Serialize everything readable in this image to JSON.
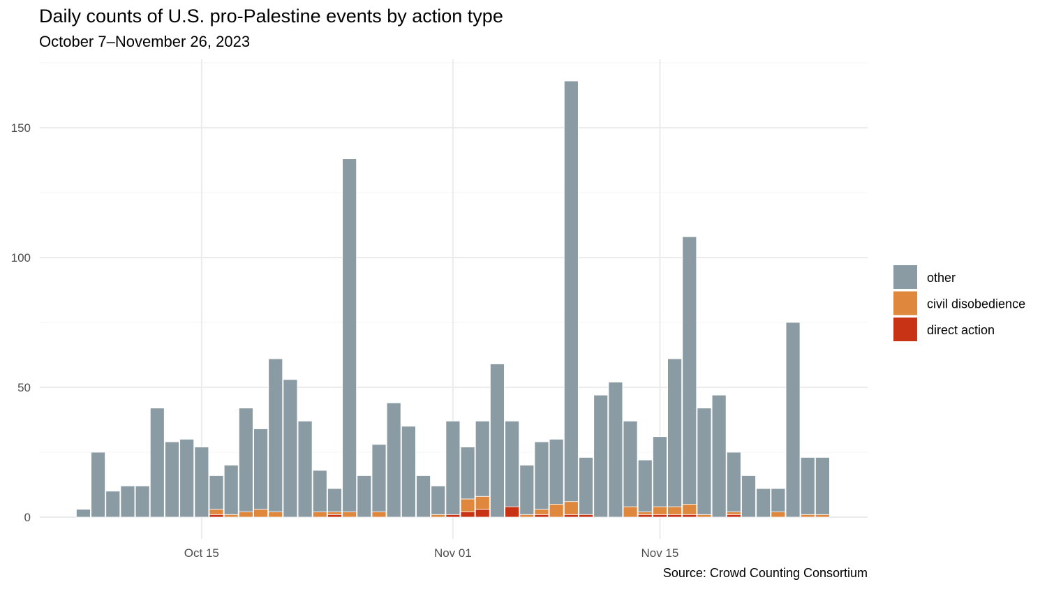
{
  "chart_data": {
    "type": "bar",
    "stacked": true,
    "title": "Daily counts of U.S. pro-Palestine events by action type",
    "subtitle": "October 7–November 26, 2023",
    "caption": "Source: Crowd Counting Consortium",
    "xlabel": "",
    "ylabel": "",
    "ylim": [
      0,
      175
    ],
    "grid": true,
    "legend_position": "right",
    "x_ticks": [
      {
        "date": "2023-10-15",
        "label": "Oct 15"
      },
      {
        "date": "2023-11-01",
        "label": "Nov 01"
      },
      {
        "date": "2023-11-15",
        "label": "Nov 15"
      }
    ],
    "y_ticks": [
      0,
      50,
      100,
      150
    ],
    "x_start": "2023-10-07",
    "x_end": "2023-11-26",
    "series": [
      {
        "name": "other",
        "color": "#8A9BA3",
        "values": [
          3,
          25,
          10,
          12,
          12,
          42,
          29,
          30,
          27,
          13,
          19,
          40,
          31,
          59,
          53,
          37,
          16,
          9,
          136,
          16,
          26,
          44,
          35,
          16,
          11,
          36,
          20,
          29,
          59,
          33,
          19,
          26,
          25,
          162,
          22,
          47,
          52,
          33,
          20,
          27,
          57,
          103,
          41,
          47,
          23,
          16,
          11,
          9,
          75,
          22,
          22
        ]
      },
      {
        "name": "civil disobedience",
        "color": "#DE873D",
        "values": [
          0,
          0,
          0,
          0,
          0,
          0,
          0,
          0,
          0,
          2,
          1,
          2,
          3,
          2,
          0,
          0,
          2,
          1,
          2,
          0,
          2,
          0,
          0,
          0,
          1,
          0,
          5,
          5,
          0,
          0,
          1,
          2,
          5,
          5,
          0,
          0,
          0,
          4,
          1,
          3,
          3,
          4,
          1,
          0,
          1,
          0,
          0,
          2,
          0,
          1,
          1
        ]
      },
      {
        "name": "direct action",
        "color": "#C93315",
        "values": [
          0,
          0,
          0,
          0,
          0,
          0,
          0,
          0,
          0,
          1,
          0,
          0,
          0,
          0,
          0,
          0,
          0,
          1,
          0,
          0,
          0,
          0,
          0,
          0,
          0,
          1,
          2,
          3,
          0,
          4,
          0,
          1,
          0,
          1,
          1,
          0,
          0,
          0,
          1,
          1,
          1,
          1,
          0,
          0,
          1,
          0,
          0,
          0,
          0,
          0,
          0
        ]
      }
    ]
  }
}
